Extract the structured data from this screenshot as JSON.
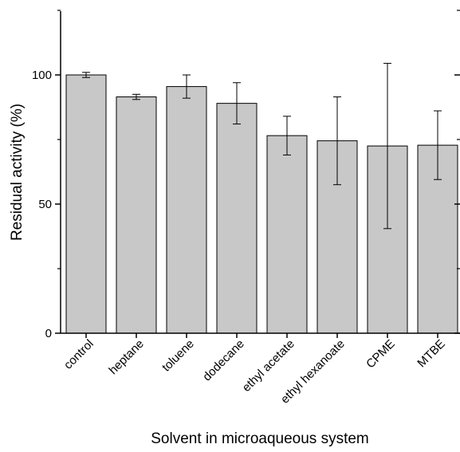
{
  "chart_data": {
    "type": "bar",
    "title": "",
    "xlabel": "Solvent in microaqueous system",
    "ylabel": "Residual activity (%)",
    "categories": [
      "control",
      "heptane",
      "toluene",
      "dodecane",
      "ethyl acetate",
      "ethyl hexanoate",
      "CPME",
      "MTBE"
    ],
    "values": [
      100,
      91.5,
      95.5,
      89,
      76.5,
      74.5,
      72.5,
      72.8
    ],
    "error": [
      1,
      1,
      4.5,
      8,
      7.5,
      17,
      32,
      13.3
    ],
    "ylim": [
      0,
      125
    ],
    "yticks": [
      0,
      50,
      100
    ],
    "grid": false,
    "legend": "none",
    "bar_color": "#c8c8c8",
    "edge_color": "#000000"
  }
}
